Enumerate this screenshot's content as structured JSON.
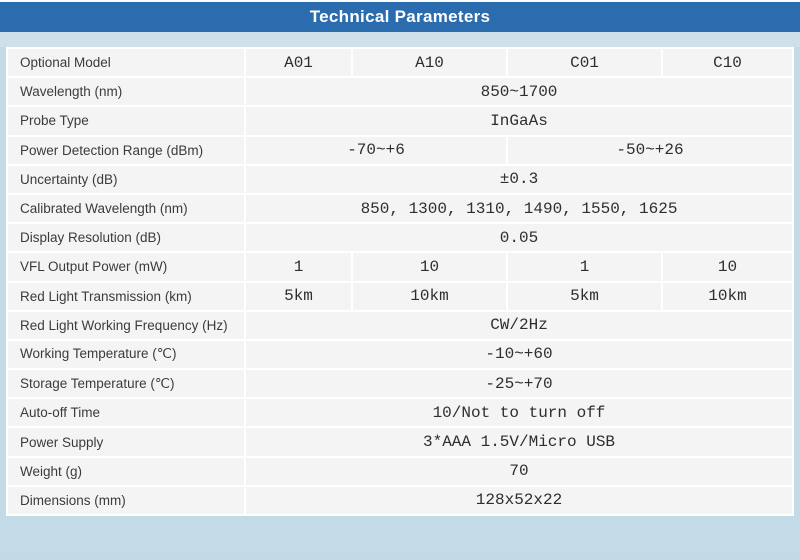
{
  "title": "Technical Parameters",
  "colors": {
    "accent_blue": "#2a6cae",
    "page_background": "#c2dbe6",
    "strip_background": "#cfe0ea",
    "cell_background": "#f4f4f5",
    "grid_line": "#ffffff",
    "title_text": "#ffffff",
    "label_text": "#3b3b3b",
    "value_text": "#2e2e2e"
  },
  "table": {
    "model_columns": [
      "A01",
      "A10",
      "C01",
      "C10"
    ],
    "rows": [
      {
        "label": "Optional Model",
        "cells": [
          {
            "text": "A01",
            "span": 1
          },
          {
            "text": "A10",
            "span": 1
          },
          {
            "text": "C01",
            "span": 1
          },
          {
            "text": "C10",
            "span": 1
          }
        ]
      },
      {
        "label": "Wavelength (nm)",
        "cells": [
          {
            "text": "850~1700",
            "span": 4
          }
        ]
      },
      {
        "label": "Probe Type",
        "cells": [
          {
            "text": "InGaAs",
            "span": 4
          }
        ]
      },
      {
        "label": "Power Detection Range (dBm)",
        "cells": [
          {
            "text": "-70~+6",
            "span": 2
          },
          {
            "text": "-50~+26",
            "span": 2
          }
        ]
      },
      {
        "label": "Uncertainty (dB)",
        "cells": [
          {
            "text": "±0.3",
            "span": 4
          }
        ]
      },
      {
        "label": "Calibrated Wavelength (nm)",
        "cells": [
          {
            "text": "850, 1300, 1310, 1490, 1550, 1625",
            "span": 4
          }
        ]
      },
      {
        "label": "Display Resolution (dB)",
        "cells": [
          {
            "text": "0.05",
            "span": 4
          }
        ]
      },
      {
        "label": "VFL Output Power (mW)",
        "cells": [
          {
            "text": "1",
            "span": 1
          },
          {
            "text": "10",
            "span": 1
          },
          {
            "text": "1",
            "span": 1
          },
          {
            "text": "10",
            "span": 1
          }
        ]
      },
      {
        "label": "Red Light Transmission (km)",
        "cells": [
          {
            "text": "5km",
            "span": 1
          },
          {
            "text": "10km",
            "span": 1
          },
          {
            "text": "5km",
            "span": 1
          },
          {
            "text": "10km",
            "span": 1
          }
        ]
      },
      {
        "label": "Red Light Working Frequency (Hz)",
        "cells": [
          {
            "text": "CW/2Hz",
            "span": 4
          }
        ]
      },
      {
        "label": "Working Temperature (℃)",
        "cells": [
          {
            "text": "-10~+60",
            "span": 4
          }
        ]
      },
      {
        "label": "Storage Temperature (℃)",
        "cells": [
          {
            "text": "-25~+70",
            "span": 4
          }
        ]
      },
      {
        "label": "Auto-off Time",
        "cells": [
          {
            "text": "10/Not to turn off",
            "span": 4
          }
        ]
      },
      {
        "label": "Power Supply",
        "cells": [
          {
            "text": "3*AAA 1.5V/Micro USB",
            "span": 4
          }
        ]
      },
      {
        "label": "Weight (g)",
        "cells": [
          {
            "text": "70",
            "span": 4
          }
        ]
      },
      {
        "label": "Dimensions (mm)",
        "cells": [
          {
            "text": "128x52x22",
            "span": 4
          }
        ]
      }
    ]
  }
}
